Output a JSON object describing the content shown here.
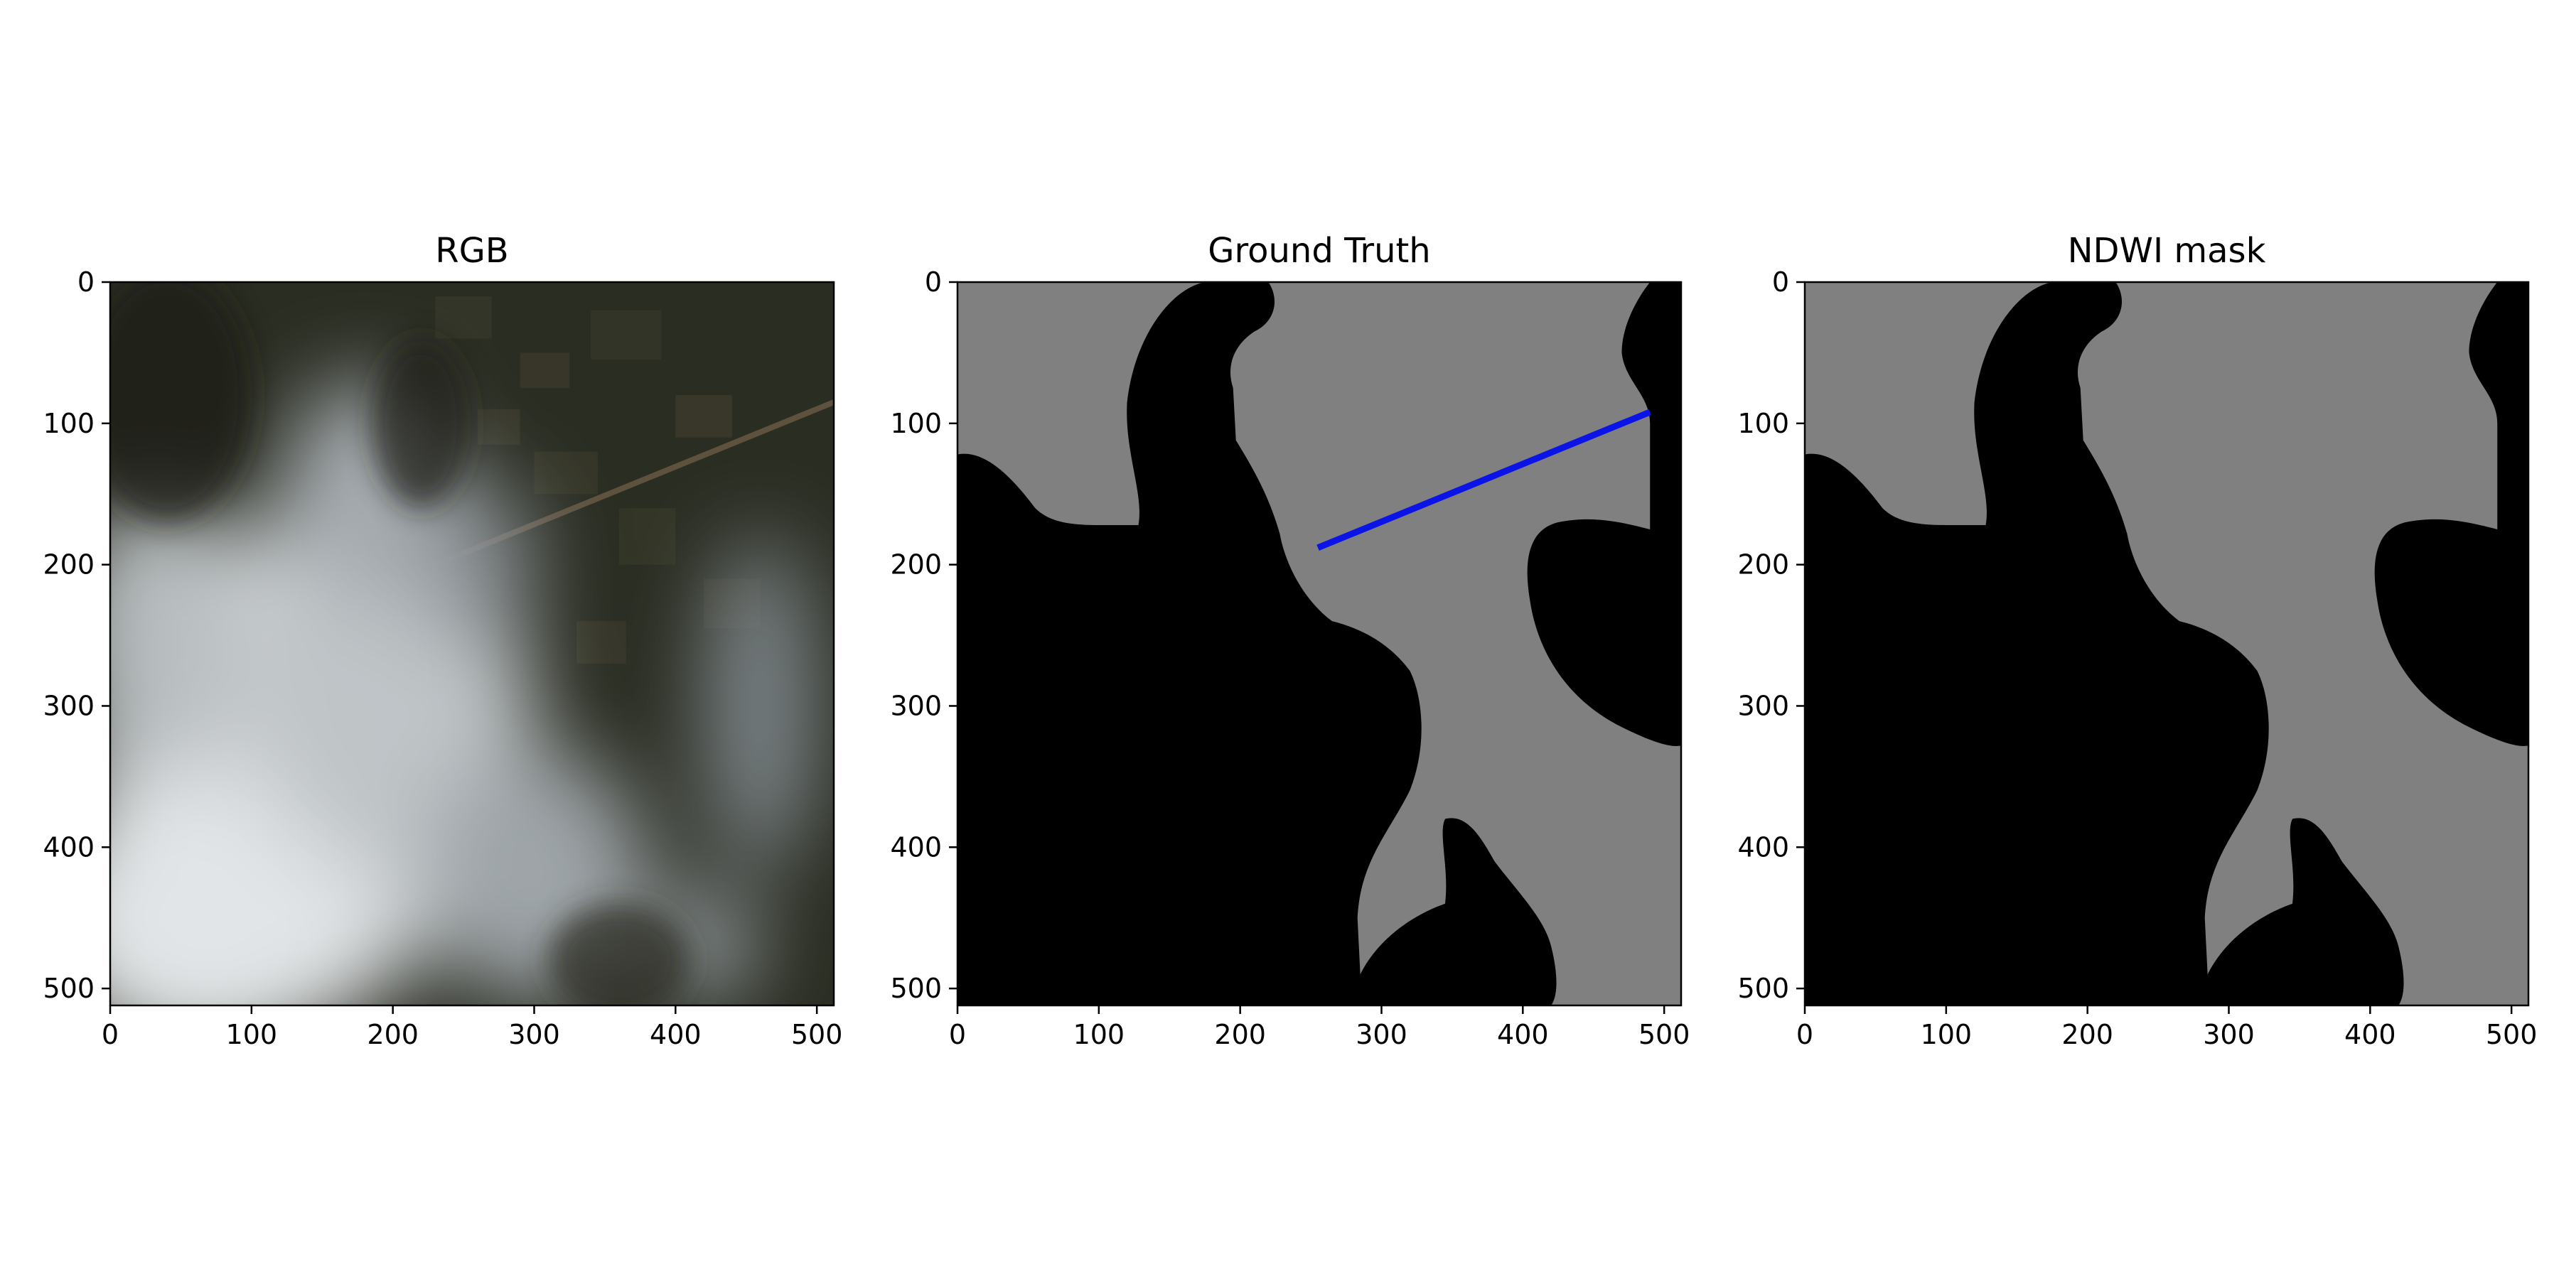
{
  "chart_data": [
    {
      "type": "image",
      "title": "RGB",
      "xlim": [
        0,
        512
      ],
      "ylim": [
        512,
        0
      ],
      "xticks": [
        0,
        100,
        200,
        300,
        400,
        500
      ],
      "yticks": [
        0,
        100,
        200,
        300,
        400,
        500
      ],
      "image_kind": "satellite-rgb-cloudy",
      "colors": {
        "cloud": "#d8dcde",
        "land": "#2f3325",
        "road": "#6b5a45"
      }
    },
    {
      "type": "image",
      "title": "Ground Truth",
      "xlim": [
        0,
        512
      ],
      "ylim": [
        512,
        0
      ],
      "xticks": [
        0,
        100,
        200,
        300,
        400,
        500
      ],
      "yticks": [
        0,
        100,
        200,
        300,
        400,
        500
      ],
      "image_kind": "binary-mask",
      "colors": {
        "background": "#808080",
        "foreground": "#000000",
        "line": "#0a14e6"
      },
      "line": {
        "x": [
          255,
          490
        ],
        "y": [
          188,
          92
        ]
      }
    },
    {
      "type": "image",
      "title": "NDWI mask",
      "xlim": [
        0,
        512
      ],
      "ylim": [
        512,
        0
      ],
      "xticks": [
        0,
        100,
        200,
        300,
        400,
        500
      ],
      "yticks": [
        0,
        100,
        200,
        300,
        400,
        500
      ],
      "image_kind": "binary-mask",
      "colors": {
        "background": "#808080",
        "foreground": "#000000"
      }
    }
  ]
}
